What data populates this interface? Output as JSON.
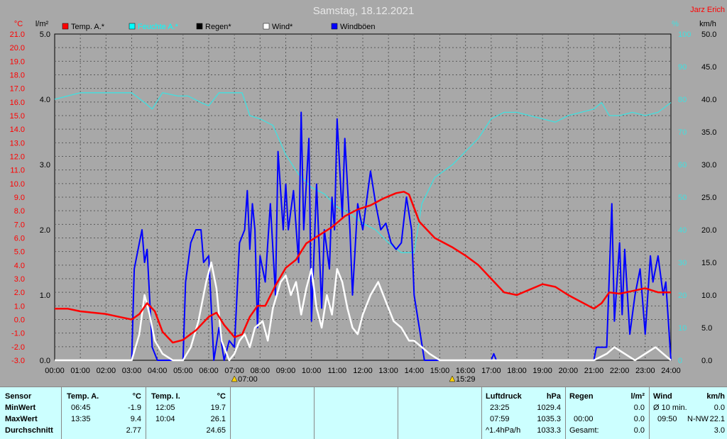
{
  "header": {
    "title": "Samstag, 18.12.2021",
    "author": "Jarz Erich"
  },
  "chart_data": {
    "type": "line",
    "title": "Samstag, 18.12.2021",
    "x_ticks": [
      "00:00",
      "01:00",
      "02:00",
      "03:00",
      "04:00",
      "05:00",
      "06:00",
      "07:00",
      "08:00",
      "09:00",
      "10:00",
      "11:00",
      "12:00",
      "13:00",
      "14:00",
      "15:00",
      "16:00",
      "17:00",
      "18:00",
      "19:00",
      "20:00",
      "21:00",
      "22:00",
      "23:00",
      "24:00"
    ],
    "sunrise": "07:00",
    "sunset": "15:29",
    "axes": {
      "temp": {
        "unit": "°C",
        "min": -3,
        "max": 21,
        "step": 1,
        "color": "#ff0000"
      },
      "rain": {
        "unit": "l/m²",
        "min": 0,
        "max": 5,
        "ticks": [
          "0.0",
          "1.0",
          "2.0",
          "3.0",
          "4.0",
          "5.0"
        ],
        "color": "#000000"
      },
      "humidity": {
        "unit": "%",
        "min": 0,
        "max": 100,
        "ticks": [
          "0",
          "10",
          "20",
          "30",
          "40",
          "50",
          "60",
          "70",
          "80",
          "90",
          "100"
        ],
        "color": "#40e0e0"
      },
      "wind": {
        "unit": "km/h",
        "min": 0,
        "max": 50,
        "ticks": [
          "0.0",
          "5.0",
          "10.0",
          "15.0",
          "20.0",
          "25.0",
          "30.0",
          "35.0",
          "40.0",
          "45.0",
          "50.0"
        ],
        "color": "#000000"
      }
    },
    "legend": [
      {
        "label": "Temp. A.*",
        "color": "#ff0000"
      },
      {
        "label": "Feuchte A.*",
        "color": "#00ffff"
      },
      {
        "label": "Regen*",
        "color": "#000000"
      },
      {
        "label": "Wind*",
        "color": "#ffffff"
      },
      {
        "label": "Windböen",
        "color": "#0000ff"
      }
    ],
    "series": [
      {
        "name": "Temp. A.*",
        "axis": "temp",
        "color": "#ff0000",
        "points": [
          [
            0,
            0.8
          ],
          [
            0.5,
            0.8
          ],
          [
            1,
            0.6
          ],
          [
            1.5,
            0.5
          ],
          [
            2,
            0.4
          ],
          [
            2.5,
            0.2
          ],
          [
            3,
            0.0
          ],
          [
            3.3,
            0.4
          ],
          [
            3.6,
            1.2
          ],
          [
            3.9,
            0.6
          ],
          [
            4.2,
            -0.9
          ],
          [
            4.6,
            -1.7
          ],
          [
            5,
            -1.5
          ],
          [
            5.5,
            -0.8
          ],
          [
            6,
            0.2
          ],
          [
            6.3,
            0.5
          ],
          [
            6.6,
            -0.4
          ],
          [
            7,
            -1.3
          ],
          [
            7.3,
            -1.1
          ],
          [
            7.6,
            0.2
          ],
          [
            7.9,
            1.0
          ],
          [
            8.2,
            1.0
          ],
          [
            8.6,
            2.5
          ],
          [
            9,
            3.8
          ],
          [
            9.4,
            4.4
          ],
          [
            9.8,
            5.6
          ],
          [
            10.3,
            6.2
          ],
          [
            10.8,
            6.8
          ],
          [
            11.3,
            7.6
          ],
          [
            11.8,
            8.1
          ],
          [
            12.3,
            8.4
          ],
          [
            12.8,
            8.9
          ],
          [
            13.3,
            9.3
          ],
          [
            13.6,
            9.4
          ],
          [
            13.8,
            9.2
          ],
          [
            14.2,
            7.2
          ],
          [
            14.8,
            6.0
          ],
          [
            15.5,
            5.3
          ],
          [
            16,
            4.7
          ],
          [
            16.5,
            4.0
          ],
          [
            17,
            3.0
          ],
          [
            17.5,
            2.0
          ],
          [
            18,
            1.8
          ],
          [
            18.5,
            2.2
          ],
          [
            19,
            2.6
          ],
          [
            19.5,
            2.4
          ],
          [
            20,
            1.8
          ],
          [
            20.5,
            1.3
          ],
          [
            21,
            0.8
          ],
          [
            21.3,
            1.2
          ],
          [
            21.6,
            2.0
          ],
          [
            22,
            1.9
          ],
          [
            22.5,
            2.1
          ],
          [
            23,
            2.3
          ],
          [
            23.5,
            2.0
          ],
          [
            24,
            2.0
          ]
        ]
      },
      {
        "name": "Feuchte A.*",
        "axis": "humidity",
        "color": "#40e0e0",
        "points": [
          [
            0,
            80
          ],
          [
            1,
            82
          ],
          [
            2,
            82
          ],
          [
            3,
            82
          ],
          [
            3.5,
            79
          ],
          [
            3.8,
            77
          ],
          [
            4.2,
            82
          ],
          [
            4.8,
            81
          ],
          [
            5.2,
            81
          ],
          [
            5.7,
            79
          ],
          [
            6,
            78
          ],
          [
            6.4,
            82
          ],
          [
            7,
            82
          ],
          [
            7.3,
            82
          ],
          [
            7.6,
            75
          ],
          [
            8,
            74
          ],
          [
            8.5,
            72
          ],
          [
            9,
            63
          ],
          [
            9.5,
            57
          ],
          [
            10,
            53
          ],
          [
            10.5,
            51
          ],
          [
            11,
            47
          ],
          [
            11.5,
            45
          ],
          [
            12,
            42
          ],
          [
            12.5,
            40
          ],
          [
            13,
            36
          ],
          [
            13.5,
            33
          ],
          [
            14,
            33
          ],
          [
            14.3,
            48
          ],
          [
            14.8,
            56
          ],
          [
            15.5,
            60
          ],
          [
            16,
            64
          ],
          [
            16.5,
            68
          ],
          [
            17,
            74
          ],
          [
            17.5,
            76
          ],
          [
            18,
            76
          ],
          [
            18.5,
            75
          ],
          [
            19,
            74
          ],
          [
            19.5,
            73
          ],
          [
            20,
            75
          ],
          [
            20.5,
            76
          ],
          [
            21,
            77
          ],
          [
            21.3,
            79
          ],
          [
            21.6,
            75
          ],
          [
            22,
            75
          ],
          [
            22.5,
            76
          ],
          [
            23,
            75
          ],
          [
            23.5,
            76
          ],
          [
            24,
            79
          ]
        ]
      },
      {
        "name": "Wind*",
        "axis": "wind",
        "color": "#ffffff",
        "points": [
          [
            0,
            0
          ],
          [
            3,
            0
          ],
          [
            3.3,
            4
          ],
          [
            3.5,
            10
          ],
          [
            3.7,
            7
          ],
          [
            3.9,
            3
          ],
          [
            4.2,
            1
          ],
          [
            4.6,
            0
          ],
          [
            5,
            0
          ],
          [
            5.3,
            2
          ],
          [
            5.6,
            6
          ],
          [
            5.9,
            12
          ],
          [
            6.1,
            15
          ],
          [
            6.3,
            11
          ],
          [
            6.5,
            3
          ],
          [
            6.8,
            0
          ],
          [
            7,
            1
          ],
          [
            7.2,
            3
          ],
          [
            7.4,
            4
          ],
          [
            7.6,
            2
          ],
          [
            7.8,
            5
          ],
          [
            8.1,
            6
          ],
          [
            8.3,
            3
          ],
          [
            8.5,
            8
          ],
          [
            8.8,
            12
          ],
          [
            9,
            13
          ],
          [
            9.2,
            10
          ],
          [
            9.4,
            12
          ],
          [
            9.6,
            7
          ],
          [
            9.8,
            11
          ],
          [
            10,
            14
          ],
          [
            10.2,
            8
          ],
          [
            10.4,
            5
          ],
          [
            10.6,
            10
          ],
          [
            10.8,
            7
          ],
          [
            11,
            14
          ],
          [
            11.2,
            12
          ],
          [
            11.4,
            8
          ],
          [
            11.6,
            5
          ],
          [
            11.8,
            4
          ],
          [
            12,
            7
          ],
          [
            12.3,
            10
          ],
          [
            12.6,
            12
          ],
          [
            12.9,
            9
          ],
          [
            13.2,
            6
          ],
          [
            13.5,
            5
          ],
          [
            13.8,
            3
          ],
          [
            14,
            3
          ],
          [
            14.3,
            2
          ],
          [
            14.6,
            1
          ],
          [
            15,
            0
          ],
          [
            21,
            0
          ],
          [
            21.5,
            1
          ],
          [
            21.8,
            2
          ],
          [
            22.2,
            1
          ],
          [
            22.6,
            0
          ],
          [
            23,
            1
          ],
          [
            23.4,
            2
          ],
          [
            23.7,
            1
          ],
          [
            24,
            0
          ]
        ]
      },
      {
        "name": "Windböen",
        "axis": "wind",
        "color": "#0000ff",
        "points": [
          [
            0,
            0
          ],
          [
            3,
            0
          ],
          [
            3.1,
            14
          ],
          [
            3.3,
            18
          ],
          [
            3.4,
            20
          ],
          [
            3.5,
            15
          ],
          [
            3.6,
            17
          ],
          [
            3.8,
            2
          ],
          [
            4,
            0
          ],
          [
            5,
            0
          ],
          [
            5.1,
            12
          ],
          [
            5.3,
            18
          ],
          [
            5.5,
            20
          ],
          [
            5.7,
            20
          ],
          [
            5.8,
            15
          ],
          [
            6,
            16
          ],
          [
            6.2,
            0
          ],
          [
            6.4,
            5
          ],
          [
            6.6,
            0
          ],
          [
            6.8,
            3
          ],
          [
            7,
            2
          ],
          [
            7.2,
            18
          ],
          [
            7.4,
            20
          ],
          [
            7.5,
            26
          ],
          [
            7.6,
            17
          ],
          [
            7.7,
            24
          ],
          [
            7.8,
            20
          ],
          [
            7.9,
            5
          ],
          [
            8,
            16
          ],
          [
            8.2,
            12
          ],
          [
            8.4,
            24
          ],
          [
            8.6,
            10
          ],
          [
            8.7,
            32
          ],
          [
            8.9,
            20
          ],
          [
            9,
            27
          ],
          [
            9.1,
            20
          ],
          [
            9.3,
            26
          ],
          [
            9.5,
            15
          ],
          [
            9.6,
            38
          ],
          [
            9.7,
            20
          ],
          [
            9.9,
            34
          ],
          [
            10,
            6
          ],
          [
            10.2,
            27
          ],
          [
            10.4,
            8
          ],
          [
            10.5,
            20
          ],
          [
            10.7,
            14
          ],
          [
            10.8,
            25
          ],
          [
            10.9,
            20
          ],
          [
            11,
            37
          ],
          [
            11.2,
            22
          ],
          [
            11.3,
            34
          ],
          [
            11.5,
            20
          ],
          [
            11.6,
            10
          ],
          [
            11.8,
            24
          ],
          [
            12,
            20
          ],
          [
            12.3,
            29
          ],
          [
            12.5,
            24
          ],
          [
            12.7,
            20
          ],
          [
            12.9,
            21
          ],
          [
            13.1,
            18
          ],
          [
            13.3,
            17
          ],
          [
            13.5,
            18
          ],
          [
            13.7,
            25
          ],
          [
            13.9,
            20
          ],
          [
            14,
            10
          ],
          [
            14.2,
            5
          ],
          [
            14.4,
            0
          ],
          [
            17,
            0
          ],
          [
            17.1,
            1
          ],
          [
            17.2,
            0
          ],
          [
            21,
            0
          ],
          [
            21.1,
            2
          ],
          [
            21.5,
            2
          ],
          [
            21.7,
            24
          ],
          [
            21.8,
            6
          ],
          [
            22,
            18
          ],
          [
            22.1,
            7
          ],
          [
            22.2,
            17
          ],
          [
            22.4,
            4
          ],
          [
            22.6,
            10
          ],
          [
            22.8,
            14
          ],
          [
            23,
            4
          ],
          [
            23.2,
            16
          ],
          [
            23.3,
            12
          ],
          [
            23.5,
            16
          ],
          [
            23.7,
            10
          ],
          [
            23.8,
            12
          ],
          [
            24,
            0
          ]
        ]
      }
    ]
  },
  "stats": {
    "sensor": {
      "title": "Sensor",
      "rows": [
        "MinWert",
        "MaxWert",
        "Durchschnitt"
      ]
    },
    "temp_a": {
      "title": "Temp. A.",
      "unit": "°C",
      "rows": [
        {
          "time": "06:45",
          "value": "-1.9"
        },
        {
          "time": "13:35",
          "value": "9.4"
        },
        {
          "time": "",
          "value": "2.77"
        }
      ]
    },
    "temp_i": {
      "title": "Temp. I.",
      "unit": "°C",
      "rows": [
        {
          "time": "12:05",
          "value": "19.7"
        },
        {
          "time": "10:04",
          "value": "26.1"
        },
        {
          "time": "",
          "value": "24.65"
        }
      ]
    },
    "pressure": {
      "title": "Luftdruck",
      "unit": "hPa",
      "rows": [
        {
          "time": "23:25",
          "value": "1029.4"
        },
        {
          "time": "07:59",
          "value": "1035.3"
        },
        {
          "time": "^1.4hPa/h",
          "value": "1033.3"
        }
      ]
    },
    "rain": {
      "title": "Regen",
      "unit": "l/m²",
      "rows": [
        {
          "time": "",
          "value": "0.0"
        },
        {
          "time": "00:00",
          "value": "0.0"
        },
        {
          "time": "Gesamt:",
          "value": "0.0"
        }
      ]
    },
    "wind": {
      "title": "Wind",
      "unit": "km/h",
      "rows": [
        {
          "time": "Ø 10 min.",
          "value": "0.0"
        },
        {
          "time": "09:50",
          "dir": "N-NW",
          "value": "22.1"
        },
        {
          "time": "",
          "value": "3.0"
        }
      ]
    }
  }
}
